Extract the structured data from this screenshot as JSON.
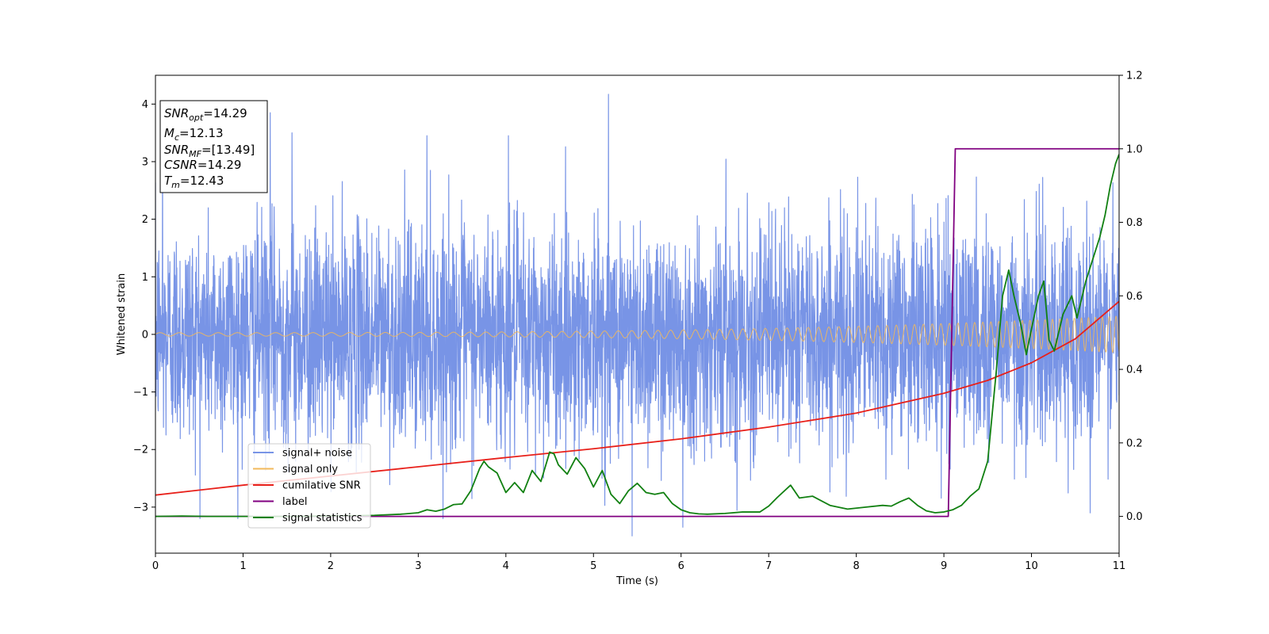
{
  "chart_data": {
    "type": "line",
    "title": "",
    "xlabel": "Time (s)",
    "ylabel": "Whitened strain",
    "y2label": "",
    "xlim": [
      0,
      11
    ],
    "ylim": [
      -3.8,
      4.5
    ],
    "y2lim": [
      -0.1,
      1.2
    ],
    "x_ticks": [
      0,
      1,
      2,
      3,
      4,
      5,
      6,
      7,
      8,
      9,
      10,
      11
    ],
    "y_ticks": [
      -3,
      -2,
      -1,
      0,
      1,
      2,
      3,
      4
    ],
    "y_tick_labels": [
      "−3",
      "−2",
      "−1",
      "0",
      "1",
      "2",
      "3",
      "4"
    ],
    "y2_ticks": [
      0.0,
      0.2,
      0.4,
      0.6,
      0.8,
      1.0,
      1.2
    ],
    "y2_tick_labels": [
      "0.0",
      "0.2",
      "0.4",
      "0.6",
      "0.8",
      "1.0",
      "1.2"
    ],
    "grid": false,
    "legend_position": "lower-left",
    "info_box": {
      "lines": [
        {
          "label": "SNR",
          "sub": "opt",
          "value": "=14.29"
        },
        {
          "label": "M",
          "sub": "c",
          "value": "=12.13"
        },
        {
          "label": "SNR",
          "sub": "MF",
          "value": "=[13.49]"
        },
        {
          "label": "CSNR",
          "sub": "",
          "value": "=14.29"
        },
        {
          "label": "T",
          "sub": "m",
          "value": "=12.43"
        }
      ]
    },
    "series": [
      {
        "name": "signal+ noise",
        "axis": "left",
        "color": "#7894e6",
        "kind": "noise",
        "sigma": 0.95,
        "x_range": [
          0,
          11
        ],
        "notable_peaks": [
          [
            5.17,
            4.17
          ],
          [
            1.31,
            3.85
          ],
          [
            1.56,
            3.5
          ],
          [
            4.03,
            3.45
          ],
          [
            3.1,
            3.45
          ],
          [
            5.44,
            -3.5
          ],
          [
            6.02,
            -3.35
          ],
          [
            0.08,
            3.4
          ],
          [
            10.67,
            -3.1
          ]
        ]
      },
      {
        "name": "signal only",
        "axis": "left",
        "color": "#f2b85b",
        "kind": "chirp",
        "amplitude_start": 0.03,
        "amplitude_end": 0.32,
        "frequency_start": 4.5,
        "frequency_end": 13.0,
        "x_range": [
          0,
          11
        ]
      },
      {
        "name": "cumilative SNR",
        "axis": "right",
        "color": "#e8201a",
        "x": [
          0,
          1,
          2,
          3,
          4,
          5,
          6,
          7,
          8,
          9,
          9.5,
          10,
          10.5,
          11
        ],
        "y": [
          0.058,
          0.085,
          0.11,
          0.135,
          0.16,
          0.184,
          0.211,
          0.243,
          0.281,
          0.335,
          0.37,
          0.418,
          0.483,
          0.585
        ]
      },
      {
        "name": "label",
        "axis": "right",
        "color": "#800080",
        "x": [
          0,
          9.05,
          9.13,
          11
        ],
        "y": [
          0.0,
          0.0,
          1.0,
          1.0
        ]
      },
      {
        "name": "signal statistics",
        "axis": "right",
        "color": "#118011",
        "x": [
          0,
          0.3,
          0.6,
          1.0,
          1.5,
          2.0,
          2.5,
          2.8,
          3.0,
          3.1,
          3.2,
          3.3,
          3.4,
          3.5,
          3.6,
          3.7,
          3.75,
          3.8,
          3.9,
          4.0,
          4.1,
          4.2,
          4.3,
          4.4,
          4.5,
          4.55,
          4.6,
          4.7,
          4.8,
          4.9,
          5.0,
          5.1,
          5.2,
          5.3,
          5.4,
          5.5,
          5.6,
          5.7,
          5.8,
          5.9,
          6.0,
          6.1,
          6.2,
          6.3,
          6.5,
          6.7,
          6.9,
          7.0,
          7.1,
          7.25,
          7.35,
          7.5,
          7.7,
          7.9,
          8.1,
          8.3,
          8.4,
          8.5,
          8.6,
          8.7,
          8.8,
          8.9,
          9.0,
          9.1,
          9.2,
          9.3,
          9.4,
          9.5,
          9.6,
          9.67,
          9.74,
          9.8,
          9.88,
          9.94,
          10.0,
          10.08,
          10.14,
          10.2,
          10.26,
          10.36,
          10.46,
          10.52,
          10.62,
          10.7,
          10.78,
          10.84,
          10.9,
          10.96,
          11.0
        ],
        "y": [
          0.0,
          0.001,
          0.0,
          0.0,
          0.0,
          0.001,
          0.003,
          0.006,
          0.01,
          0.018,
          0.014,
          0.02,
          0.032,
          0.034,
          0.07,
          0.13,
          0.15,
          0.135,
          0.118,
          0.065,
          0.092,
          0.065,
          0.125,
          0.095,
          0.175,
          0.17,
          0.14,
          0.115,
          0.16,
          0.13,
          0.08,
          0.125,
          0.06,
          0.035,
          0.07,
          0.09,
          0.065,
          0.06,
          0.065,
          0.035,
          0.018,
          0.01,
          0.007,
          0.006,
          0.008,
          0.012,
          0.012,
          0.028,
          0.052,
          0.085,
          0.05,
          0.055,
          0.03,
          0.02,
          0.025,
          0.03,
          0.028,
          0.04,
          0.05,
          0.03,
          0.015,
          0.01,
          0.012,
          0.018,
          0.03,
          0.055,
          0.075,
          0.15,
          0.4,
          0.6,
          0.67,
          0.6,
          0.52,
          0.44,
          0.51,
          0.6,
          0.64,
          0.48,
          0.45,
          0.55,
          0.6,
          0.54,
          0.64,
          0.7,
          0.76,
          0.82,
          0.9,
          0.96,
          0.985
        ]
      }
    ]
  }
}
